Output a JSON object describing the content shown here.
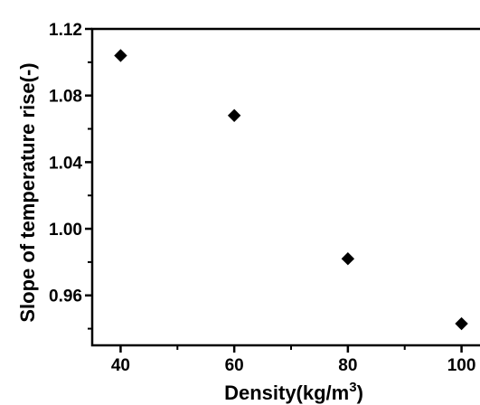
{
  "chart_data": {
    "type": "scatter",
    "xlabel": "Density(kg/m",
    "xlabel_superscript": "3",
    "xlabel_close": ")",
    "ylabel": "Slope of temperature rise(-)",
    "x_ticks": [
      "40",
      "60",
      "80",
      "100"
    ],
    "y_ticks": [
      "0.96",
      "1.00",
      "1.04",
      "1.08",
      "1.12"
    ],
    "xlim": [
      35,
      105
    ],
    "ylim": [
      0.93,
      1.12
    ],
    "marker": "diamond",
    "marker_color": "#000000",
    "series": [
      {
        "x": [
          40,
          60,
          80,
          100
        ],
        "y": [
          1.104,
          1.068,
          0.982,
          0.943
        ]
      }
    ]
  }
}
